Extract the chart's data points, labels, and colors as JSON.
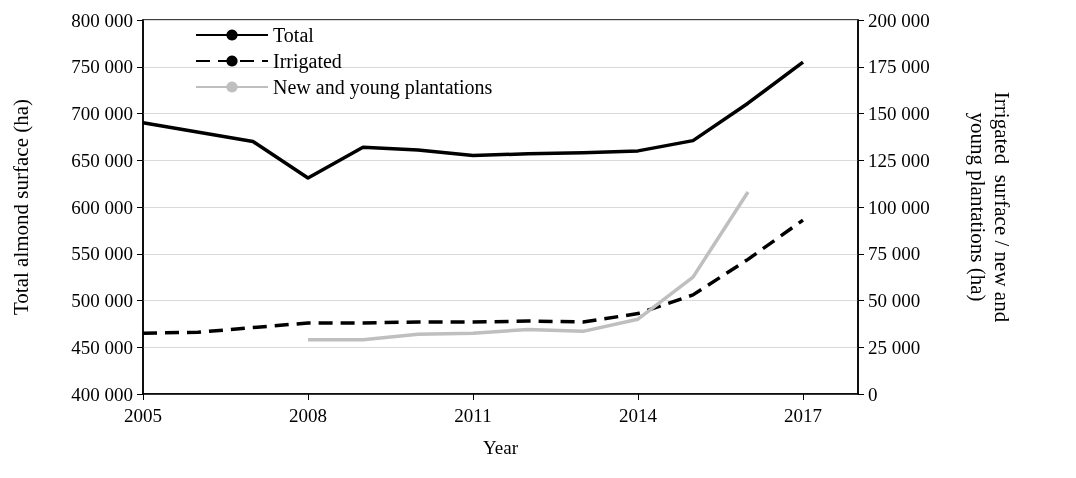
{
  "chart_data": {
    "type": "line",
    "xlabel": "Year",
    "ylabel": "Total almond surface (ha)",
    "y2label": "Irrigated  surface / new and young plantations (ha)",
    "xlim": [
      2005,
      2018
    ],
    "xticks": [
      2005,
      2008,
      2011,
      2014,
      2017
    ],
    "ylim": [
      400000,
      800000
    ],
    "yticks": [
      400000,
      450000,
      500000,
      550000,
      600000,
      650000,
      700000,
      750000,
      800000
    ],
    "y2lim": [
      0,
      200000
    ],
    "y2ticks": [
      0,
      25000,
      50000,
      75000,
      100000,
      125000,
      150000,
      175000,
      200000
    ],
    "grid": "y",
    "legend": "top left",
    "marker": "none",
    "series": [
      {
        "name": "Total",
        "color": "#000000",
        "line_style": "solid",
        "x": [
          2005,
          2007,
          2008,
          2009,
          2010,
          2011,
          2012,
          2013,
          2014,
          2015,
          2016,
          2017
        ],
        "values": [
          690000,
          670000,
          631000,
          664000,
          661000,
          655000,
          657000,
          658000,
          660000,
          671000,
          711000,
          755000
        ]
      },
      {
        "name": "Irrigated",
        "color": "#000000",
        "line_style": "dashed",
        "axis": "y2",
        "x": [
          2005,
          2006,
          2007,
          2008,
          2009,
          2010,
          2011,
          2012,
          2013,
          2014,
          2015,
          2016,
          2017
        ],
        "values": [
          32500,
          33000,
          35500,
          38000,
          38000,
          38500,
          38500,
          39000,
          38500,
          43000,
          53000,
          72000,
          93000
        ]
      },
      {
        "name": "New and young plantations",
        "color": "#bfbfbf",
        "line_style": "solid",
        "axis": "y2",
        "x": [
          2008,
          2009,
          2010,
          2011,
          2012,
          2013,
          2014,
          2015,
          2016
        ],
        "values": [
          29000,
          29000,
          32000,
          32500,
          34500,
          33500,
          40000,
          62500,
          108000
        ]
      }
    ]
  }
}
